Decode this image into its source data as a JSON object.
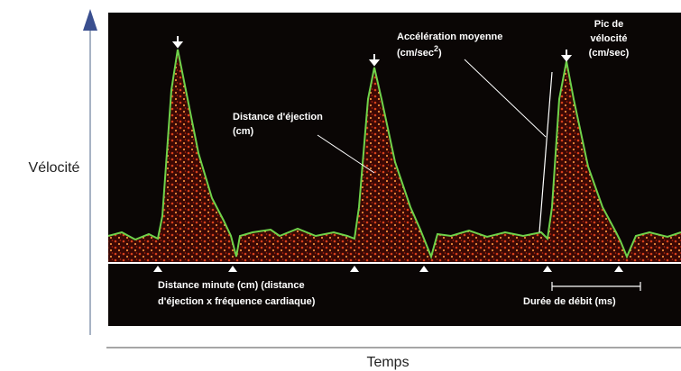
{
  "axes": {
    "y_label": "Vélocité",
    "x_label": "Temps"
  },
  "annotations": {
    "ejection_distance": {
      "lines": [
        "Distance d'éjection",
        "(cm)"
      ]
    },
    "mean_acceleration": {
      "title": "Accélération moyenne",
      "unit_parts": [
        "(cm/sec",
        "2",
        ")"
      ]
    },
    "peak_velocity": {
      "lines": [
        "Pic de",
        "vélocité",
        "(cm/sec)"
      ]
    },
    "minute_distance": {
      "lines": [
        "Distance minute (cm) (distance",
        "d'éjection x fréquence cardiaque)"
      ]
    },
    "flow_duration": {
      "label": "Durée de débit (ms)"
    }
  }
}
